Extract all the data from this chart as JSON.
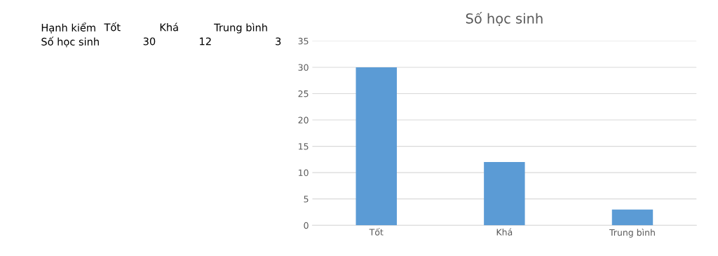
{
  "chart_data": {
    "type": "bar",
    "title": "Số học sinh",
    "categories": [
      "Tốt",
      "Khá",
      "Trung bình"
    ],
    "values": [
      30,
      12,
      3
    ],
    "color": "#5b9bd5",
    "ylim": [
      0,
      35
    ],
    "yticks": [
      0,
      5,
      10,
      15,
      20,
      25,
      30,
      35
    ],
    "grid": "y",
    "annotations": [
      "Hạnh kiểm",
      "Tốt",
      "Khá",
      "Trung bình",
      "Số học sinh",
      "30",
      "12",
      "3"
    ]
  }
}
